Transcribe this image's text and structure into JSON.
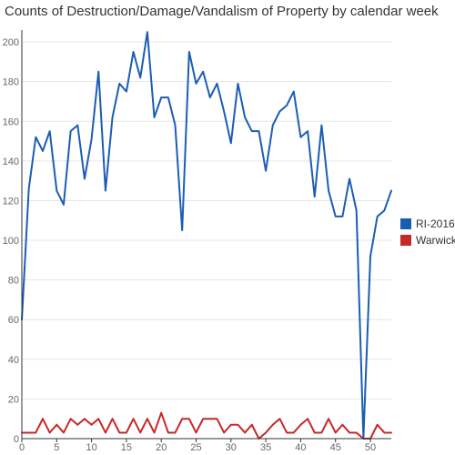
{
  "chart_data": {
    "type": "line",
    "title": "Counts of Destruction/Damage/Vandalism of Property by calendar week",
    "xlabel": "",
    "ylabel": "",
    "x": [
      0,
      1,
      2,
      3,
      4,
      5,
      6,
      7,
      8,
      9,
      10,
      11,
      12,
      13,
      14,
      15,
      16,
      17,
      18,
      19,
      20,
      21,
      22,
      23,
      24,
      25,
      26,
      27,
      28,
      29,
      30,
      31,
      32,
      33,
      34,
      35,
      36,
      37,
      38,
      39,
      40,
      41,
      42,
      43,
      44,
      45,
      46,
      47,
      48,
      49,
      50,
      51,
      52,
      53
    ],
    "xlim": [
      0,
      53
    ],
    "ylim": [
      0,
      206
    ],
    "x_ticks": [
      0,
      5,
      10,
      15,
      20,
      25,
      30,
      35,
      40,
      45,
      50
    ],
    "y_ticks": [
      0,
      20,
      40,
      60,
      80,
      100,
      120,
      140,
      160,
      180,
      200
    ],
    "grid": true,
    "legend_position": "right",
    "series": [
      {
        "name": "RI-2016",
        "color": "#1c5db4",
        "values": [
          60,
          126,
          152,
          145,
          155,
          125,
          118,
          155,
          158,
          131,
          151,
          185,
          125,
          162,
          179,
          175,
          195,
          182,
          205,
          162,
          172,
          172,
          158,
          105,
          195,
          179,
          185,
          172,
          179,
          165,
          149,
          179,
          162,
          155,
          155,
          135,
          158,
          165,
          168,
          175,
          152,
          155,
          122,
          158,
          125,
          112,
          112,
          131,
          115,
          0,
          92,
          112,
          115,
          125
        ]
      },
      {
        "name": "Warwick",
        "color": "#c62828",
        "values": [
          3,
          3,
          3,
          10,
          3,
          7,
          3,
          10,
          7,
          10,
          7,
          10,
          3,
          10,
          3,
          3,
          10,
          3,
          10,
          3,
          13,
          3,
          3,
          10,
          10,
          3,
          10,
          10,
          10,
          3,
          7,
          7,
          3,
          7,
          0,
          3,
          7,
          10,
          3,
          3,
          7,
          10,
          3,
          3,
          10,
          3,
          7,
          3,
          3,
          0,
          0,
          7,
          3,
          3
        ]
      }
    ]
  }
}
